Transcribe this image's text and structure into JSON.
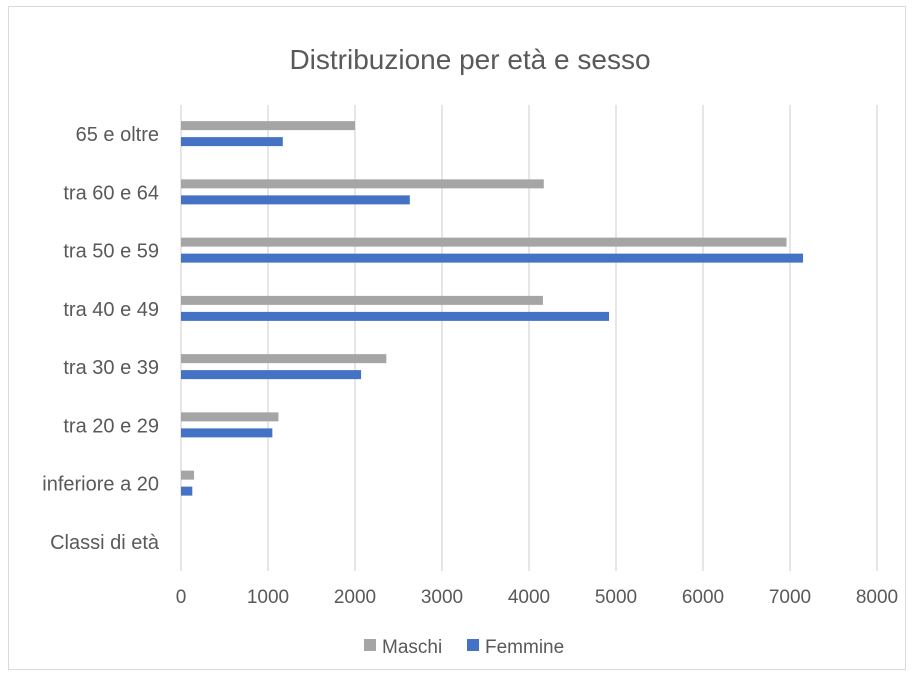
{
  "chart_data": {
    "type": "bar",
    "orientation": "horizontal",
    "title": "Distribuzione per età e sesso",
    "categories": [
      "Classi di età",
      "inferiore a 20",
      "tra 20 e 29",
      "tra 30 e 39",
      "tra 40 e 49",
      "tra 50 e 59",
      "tra 60 e 64",
      "65 e oltre"
    ],
    "series": [
      {
        "name": "Maschi",
        "color": "#a5a5a5",
        "values": [
          0,
          150,
          1120,
          2360,
          4160,
          6960,
          4170,
          2000
        ]
      },
      {
        "name": "Femmine",
        "color": "#4472c4",
        "values": [
          0,
          130,
          1050,
          2070,
          4920,
          7150,
          2630,
          1170
        ]
      }
    ],
    "xlim": [
      0,
      8000
    ],
    "xticks": [
      0,
      1000,
      2000,
      3000,
      4000,
      5000,
      6000,
      7000,
      8000
    ],
    "grid": "vertical",
    "gridline_color": "#d9d9d9",
    "legend_position": "bottom"
  }
}
